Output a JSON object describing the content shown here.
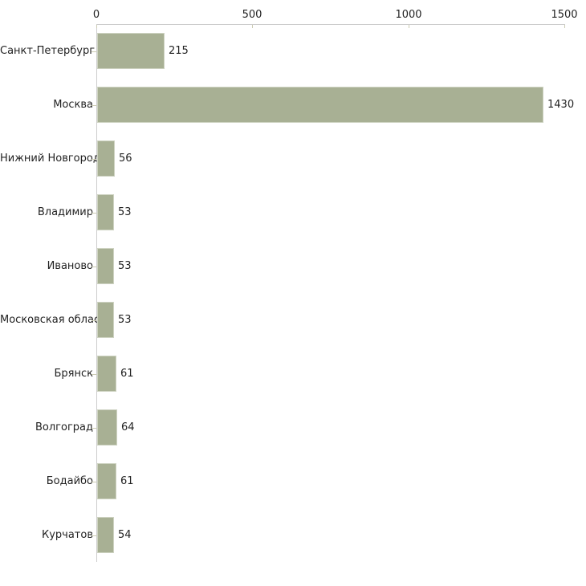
{
  "chart_data": {
    "type": "bar",
    "orientation": "horizontal",
    "categories": [
      "Санкт-Петербург",
      "Москва",
      "Нижний Новгород",
      "Владимир",
      "Иваново",
      "Московская область",
      "Брянск",
      "Волгоград",
      "Бодайбо",
      "Курчатов"
    ],
    "values": [
      215,
      1430,
      56,
      53,
      53,
      53,
      61,
      64,
      61,
      54
    ],
    "value_labels": [
      "215",
      "1430",
      "56",
      "53",
      "53",
      "53",
      "61",
      "64",
      "61",
      "54"
    ],
    "x_tick_labels": [
      "0",
      "500",
      "1000",
      "1500"
    ],
    "x_tick_values": [
      0,
      500,
      1000,
      1500
    ],
    "xlim": [
      0,
      1500
    ],
    "x_axis_position": "top",
    "grid": false,
    "legend": "none",
    "colors": {
      "bar_fill": "#a8b094",
      "bar_border": "#ced3c2",
      "axis_line": "#cccccc",
      "tick_mark": "#ccccb3",
      "text": "#222222",
      "background": "#ffffff"
    }
  }
}
